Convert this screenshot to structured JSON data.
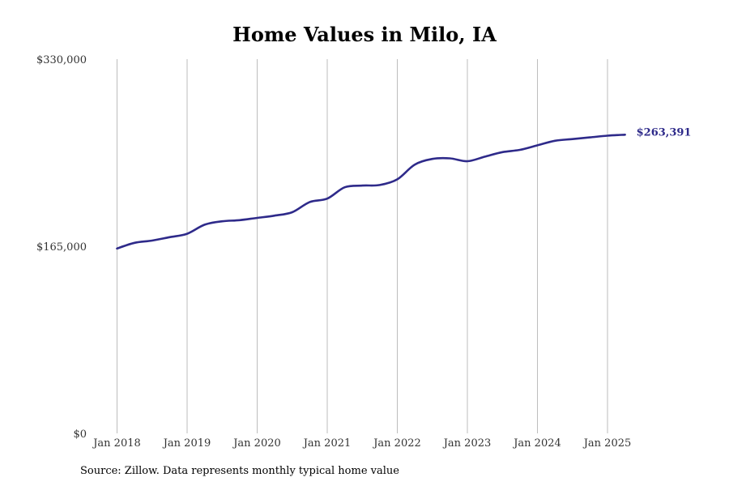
{
  "chart_data": {
    "type": "line",
    "title": "Home Values in Milo, IA",
    "xlabel": "",
    "ylabel": "",
    "ylim": [
      0,
      330000
    ],
    "yticks": [
      {
        "value": 0,
        "label": "$0"
      },
      {
        "value": 165000,
        "label": "$165,000"
      },
      {
        "value": 330000,
        "label": "$330,000"
      }
    ],
    "xlim": [
      "2018-01",
      "2025-06"
    ],
    "xticks": [
      "Jan 2018",
      "Jan 2019",
      "Jan 2020",
      "Jan 2021",
      "Jan 2022",
      "Jan 2023",
      "Jan 2024",
      "Jan 2025"
    ],
    "grid": "vertical",
    "line_color": "#2e2a8a",
    "end_label": "$263,391",
    "series": [
      {
        "x": [
          "2018-01",
          "2018-04",
          "2018-07",
          "2018-10",
          "2019-01",
          "2019-04",
          "2019-07",
          "2019-10",
          "2020-01",
          "2020-04",
          "2020-07",
          "2020-10",
          "2021-01",
          "2021-04",
          "2021-07",
          "2021-10",
          "2022-01",
          "2022-04",
          "2022-07",
          "2022-10",
          "2023-01",
          "2023-04",
          "2023-07",
          "2023-10",
          "2024-01",
          "2024-04",
          "2024-07",
          "2024-10",
          "2025-01",
          "2025-04"
        ],
        "values": [
          163000,
          168000,
          170000,
          173000,
          176000,
          184000,
          187000,
          188000,
          190000,
          192000,
          195000,
          204000,
          207000,
          217000,
          218500,
          219000,
          224000,
          237000,
          242000,
          242500,
          240000,
          244000,
          248000,
          250000,
          254000,
          258000,
          259500,
          261000,
          262500,
          263391
        ]
      }
    ]
  },
  "source": "Source: Zillow. Data represents monthly typical home value"
}
